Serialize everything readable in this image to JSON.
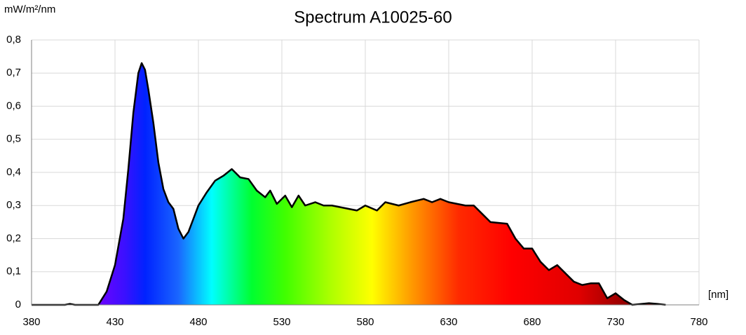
{
  "chart_data": {
    "type": "area",
    "title": "Spectrum A10025-60",
    "y_label": "mW/m²/nm",
    "x_label": "[nm]",
    "xlim": [
      380,
      780
    ],
    "xticks": [
      380,
      430,
      480,
      530,
      580,
      630,
      680,
      730,
      780
    ],
    "ylim": [
      0,
      0.8
    ],
    "yticks": [
      0,
      {
        "value": 0.1,
        "label": "0,1"
      },
      {
        "value": 0.2,
        "label": "0,2"
      },
      {
        "value": 0.3,
        "label": "0,3"
      },
      {
        "value": 0.4,
        "label": "0,4"
      },
      {
        "value": 0.5,
        "label": "0,5"
      },
      {
        "value": 0.6,
        "label": "0,6"
      },
      {
        "value": 0.7,
        "label": "0,7"
      },
      {
        "value": 0.8,
        "label": "0,8"
      }
    ],
    "grid": true,
    "line_color": "#000000",
    "x": [
      380,
      400,
      403,
      406,
      420,
      425,
      430,
      435,
      438,
      441,
      444,
      446,
      448,
      450,
      453,
      456,
      459,
      462,
      465,
      468,
      471,
      474,
      477,
      480,
      485,
      490,
      495,
      500,
      505,
      510,
      515,
      520,
      523,
      527,
      532,
      536,
      540,
      544,
      550,
      555,
      560,
      570,
      575,
      580,
      587,
      592,
      600,
      607,
      615,
      620,
      625,
      630,
      640,
      645,
      650,
      655,
      665,
      670,
      675,
      680,
      685,
      690,
      695,
      700,
      705,
      710,
      715,
      720,
      725,
      730,
      735,
      740,
      750,
      755,
      760
    ],
    "values": [
      0,
      0,
      0.003,
      0,
      0,
      0.04,
      0.12,
      0.26,
      0.41,
      0.58,
      0.7,
      0.73,
      0.71,
      0.65,
      0.55,
      0.43,
      0.35,
      0.31,
      0.29,
      0.23,
      0.2,
      0.22,
      0.26,
      0.3,
      0.34,
      0.375,
      0.39,
      0.41,
      0.385,
      0.38,
      0.345,
      0.325,
      0.345,
      0.305,
      0.33,
      0.295,
      0.33,
      0.3,
      0.31,
      0.3,
      0.3,
      0.29,
      0.285,
      0.3,
      0.285,
      0.31,
      0.3,
      0.31,
      0.32,
      0.31,
      0.32,
      0.31,
      0.3,
      0.3,
      0.275,
      0.25,
      0.245,
      0.2,
      0.17,
      0.17,
      0.13,
      0.105,
      0.12,
      0.095,
      0.07,
      0.06,
      0.065,
      0.065,
      0.02,
      0.035,
      0.015,
      0,
      0.005,
      0.003,
      0
    ]
  }
}
